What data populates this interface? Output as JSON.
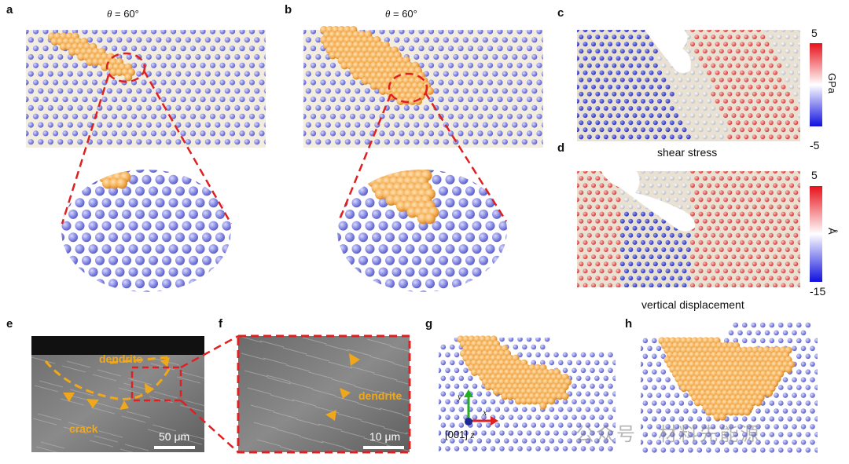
{
  "panels": {
    "a": {
      "letter": "a",
      "theta_symbol": "θ",
      "theta_value": " = 60°"
    },
    "b": {
      "letter": "b",
      "theta_symbol": "θ",
      "theta_value": " = 60°"
    },
    "c": {
      "letter": "c",
      "caption": "shear stress",
      "cb_max": "5",
      "cb_min": "-5",
      "cb_unit": "GPa"
    },
    "d": {
      "letter": "d",
      "caption": "vertical displacement",
      "cb_max": "5",
      "cb_min": "-15",
      "cb_unit": "Å"
    },
    "e": {
      "letter": "e",
      "label_dendrite": "dendrite",
      "label_crack": "crack",
      "scale": "50 μm"
    },
    "f": {
      "letter": "f",
      "label_dendrite": "dendrite",
      "scale": "10 μm"
    },
    "g": {
      "letter": "g",
      "axis_y": "y",
      "axis_x": "x",
      "axis_z_label": "[001]",
      "axis_z": "z"
    },
    "h": {
      "letter": "h"
    }
  },
  "colors": {
    "atom_blue": "#8c8fe6",
    "atom_orange": "#f5b25a",
    "dash_red": "#e02020",
    "sem_orange": "#f0a81a",
    "bg_beige": "#efe7d6"
  },
  "watermark": "公众号 · 材料先能源"
}
